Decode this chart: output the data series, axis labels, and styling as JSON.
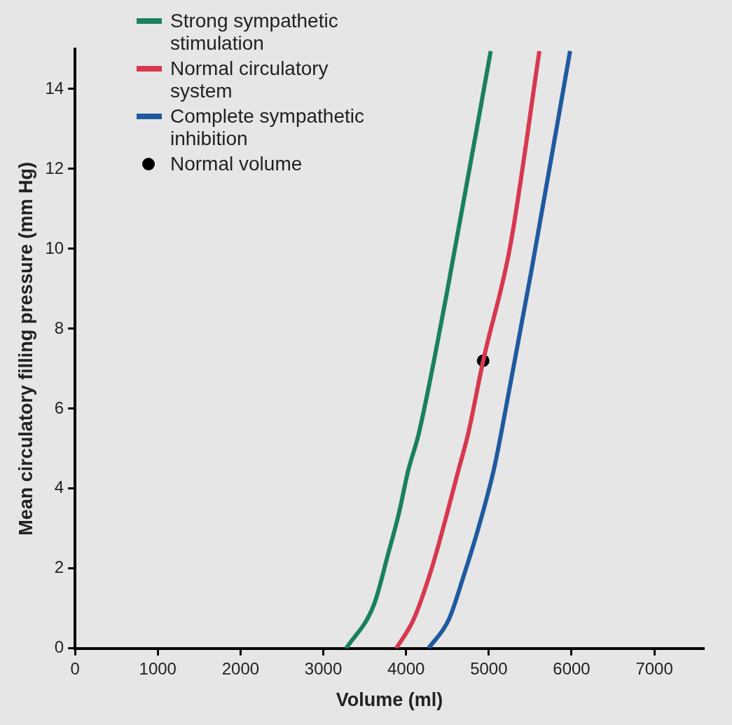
{
  "chart_data": {
    "type": "line",
    "xlabel": "Volume (ml)",
    "ylabel": "Mean circulatory filling pressure (mm Hg)",
    "xlim": [
      0,
      7600
    ],
    "ylim": [
      0,
      15
    ],
    "xticks": [
      0,
      1000,
      2000,
      3000,
      4000,
      5000,
      6000,
      7000
    ],
    "yticks": [
      0,
      2,
      4,
      6,
      8,
      10,
      12,
      14
    ],
    "grid": false,
    "legend": "top left",
    "series": [
      {
        "name": "Strong sympathetic stimulation",
        "marker": "none",
        "color": "#1a8060",
        "x": [
          3276,
          3611,
          3792,
          3910,
          4027,
          4154,
          4480,
          5023
        ],
        "values": [
          0,
          1.09,
          2.43,
          3.35,
          4.46,
          5.38,
          8.75,
          14.95
        ]
      },
      {
        "name": "Normal circulatory system",
        "marker": "none",
        "color": "#d6384f",
        "x": [
          3882,
          4090,
          4299,
          4452,
          4633,
          4751,
          4932,
          5258,
          5611
        ],
        "values": [
          0,
          0.72,
          1.93,
          3.04,
          4.46,
          5.38,
          7.2,
          10.06,
          14.95
        ]
      },
      {
        "name": "Complete sympathetic inhibition",
        "marker": "none",
        "color": "#1f5aa0",
        "x": [
          4271,
          4516,
          4697,
          4878,
          5059,
          5149,
          5511,
          5982
        ],
        "values": [
          0,
          0.72,
          1.82,
          3.04,
          4.46,
          5.38,
          9.41,
          14.95
        ]
      },
      {
        "name": "Normal volume",
        "type": "scatter",
        "marker": "circle",
        "color": "#000000",
        "x": [
          4932
        ],
        "values": [
          7.2
        ]
      }
    ]
  }
}
